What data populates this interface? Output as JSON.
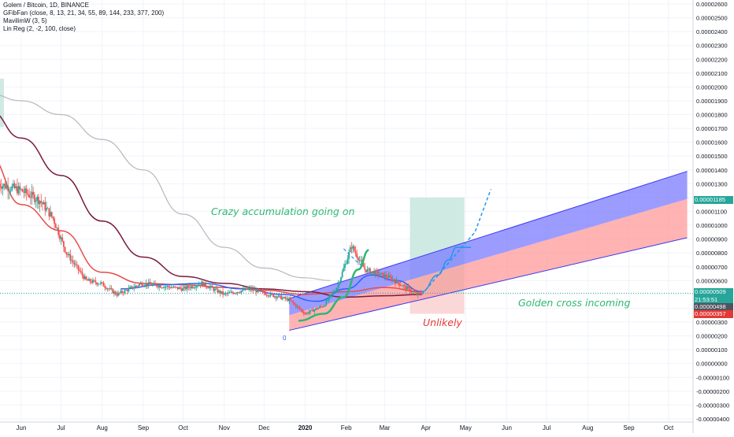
{
  "legend": {
    "symbol": "Golem / Bitcoin, 1D, BINANCE",
    "ind1": "GFibFan (close, 8, 13, 21, 34, 55, 89, 144, 233, 377, 200)",
    "ind2": "MavilimW (3, 5)",
    "ind3": "Lin Reg (2, -2, 100, close)"
  },
  "annotations": {
    "accumulation": "Crazy accumulation going on",
    "golden_cross": "Golden cross incoming",
    "unlikely": "Unlikely",
    "pivot": "0"
  },
  "price_tags": {
    "regression_top": "0.00001185",
    "last_price": "0.00000509",
    "countdown": "21:53:51",
    "ma_value": "0.00000498",
    "stop_level": "0.00000357"
  },
  "colors": {
    "up": "#26a69a",
    "down": "#ef5350",
    "channel_upper": "#7b7bff",
    "channel_lower": "#ff9a9a",
    "ma_red": "#e84a4a",
    "ma_maroon": "#7b1a3c",
    "ma_gray": "#b8b8b8",
    "ma_blue": "#2962ff",
    "arc_green": "#2eb872",
    "projection": "#2196f3",
    "target_box": "#cfe9e3",
    "loss_box": "#fbd8d8",
    "tag_green": "#26a69a",
    "tag_red": "#e53935",
    "tag_dark": "#50535e"
  },
  "chart_data": {
    "type": "candlestick",
    "title": "Golem / Bitcoin, 1D, BINANCE",
    "y_axis": {
      "ticks": [
        "0.00002600",
        "0.00002500",
        "0.00002400",
        "0.00002300",
        "0.00002200",
        "0.00002100",
        "0.00002000",
        "0.00001900",
        "0.00001800",
        "0.00001700",
        "0.00001600",
        "0.00001500",
        "0.00001400",
        "0.00001300",
        "0.00001200",
        "0.00001100",
        "0.00001000",
        "0.00000900",
        "0.00000800",
        "0.00000700",
        "0.00000600",
        "0.00000500",
        "0.00000400",
        "0.00000300",
        "0.00000200",
        "0.00000100",
        "0.00000000",
        "-0.00000100",
        "-0.00000200",
        "-0.00000300",
        "-0.00000400"
      ],
      "range": [
        -4e-06,
        2.6e-05
      ]
    },
    "x_axis": {
      "ticks": [
        "Jun",
        "Jul",
        "Aug",
        "Sep",
        "Oct",
        "Nov",
        "Dec",
        "2020",
        "Feb",
        "Mar",
        "Apr",
        "May",
        "Jun",
        "Jul",
        "Aug",
        "Sep",
        "Oct"
      ]
    },
    "price_path": [
      [
        "2019-05-15",
        1.3e-05
      ],
      [
        "2019-06-01",
        1.25e-05
      ],
      [
        "2019-06-15",
        1.18e-05
      ],
      [
        "2019-06-25",
        1.05e-05
      ],
      [
        "2019-07-05",
        8e-06
      ],
      [
        "2019-07-20",
        6e-06
      ],
      [
        "2019-07-31",
        5.8e-06
      ],
      [
        "2019-08-12",
        5e-06
      ],
      [
        "2019-08-31",
        5.8e-06
      ],
      [
        "2019-09-15",
        5.6e-06
      ],
      [
        "2019-10-01",
        5.4e-06
      ],
      [
        "2019-10-15",
        5.8e-06
      ],
      [
        "2019-11-01",
        5e-06
      ],
      [
        "2019-11-20",
        5.4e-06
      ],
      [
        "2019-12-05",
        5e-06
      ],
      [
        "2019-12-20",
        4.6e-06
      ],
      [
        "2020-01-01",
        3.6e-06
      ],
      [
        "2020-01-15",
        4.2e-06
      ],
      [
        "2020-01-25",
        5.5e-06
      ],
      [
        "2020-02-05",
        8.5e-06
      ],
      [
        "2020-02-15",
        6.8e-06
      ],
      [
        "2020-02-25",
        6.5e-06
      ],
      [
        "2020-03-05",
        6.2e-06
      ],
      [
        "2020-03-15",
        5.6e-06
      ],
      [
        "2020-03-25",
        5e-06
      ],
      [
        "2020-03-29",
        5.1e-06
      ]
    ],
    "regression_channel": {
      "start": "2019-12-20",
      "end": "2020-10-15",
      "upper": [
        4.7e-06,
        1.39e-05
      ],
      "middle": [
        3.5e-06,
        1.19e-05
      ],
      "lower": [
        2.4e-06,
        9.1e-06
      ]
    },
    "moving_averages": [
      {
        "color": "#e84a4a",
        "points": [
          [
            "2019-05-08",
            1.5e-05
          ],
          [
            "2019-06-01",
            1.15e-05
          ],
          [
            "2019-07-01",
            9.6e-06
          ],
          [
            "2019-08-01",
            6.6e-06
          ],
          [
            "2019-09-01",
            5.8e-06
          ],
          [
            "2019-10-01",
            5.7e-06
          ],
          [
            "2019-11-01",
            5.5e-06
          ],
          [
            "2019-12-01",
            5.3e-06
          ],
          [
            "2020-01-01",
            5e-06
          ],
          [
            "2020-02-01",
            5.2e-06
          ],
          [
            "2020-03-01",
            5.5e-06
          ],
          [
            "2020-03-29",
            5.2e-06
          ]
        ]
      },
      {
        "color": "#7b1a3c",
        "points": [
          [
            "2019-05-08",
            1.83e-05
          ],
          [
            "2019-06-01",
            1.63e-05
          ],
          [
            "2019-07-01",
            1.36e-05
          ],
          [
            "2019-08-01",
            1.03e-05
          ],
          [
            "2019-09-01",
            7.7e-06
          ],
          [
            "2019-10-01",
            6.3e-06
          ],
          [
            "2019-11-01",
            5.8e-06
          ],
          [
            "2019-12-01",
            5.4e-06
          ],
          [
            "2020-01-01",
            5.2e-06
          ],
          [
            "2020-02-01",
            4.8e-06
          ],
          [
            "2020-03-01",
            4.9e-06
          ],
          [
            "2020-03-29",
            5e-06
          ]
        ]
      },
      {
        "color": "#b8b8b8",
        "points": [
          [
            "2019-05-08",
            1.95e-05
          ],
          [
            "2019-06-01",
            1.9e-05
          ],
          [
            "2019-07-01",
            1.8e-05
          ],
          [
            "2019-08-01",
            1.62e-05
          ],
          [
            "2019-09-01",
            1.4e-05
          ],
          [
            "2019-10-01",
            1.08e-05
          ],
          [
            "2019-11-01",
            8.4e-06
          ],
          [
            "2019-12-01",
            6.9e-06
          ],
          [
            "2020-01-01",
            6.2e-06
          ],
          [
            "2020-01-20",
            6e-06
          ]
        ]
      },
      {
        "color": "#2962ff",
        "points": [
          [
            "2019-08-15",
            5.4e-06
          ],
          [
            "2019-09-15",
            5.7e-06
          ],
          [
            "2019-10-15",
            5.8e-06
          ],
          [
            "2019-11-15",
            5.4e-06
          ],
          [
            "2019-12-15",
            5e-06
          ],
          [
            "2020-01-10",
            4.5e-06
          ],
          [
            "2020-02-01",
            5.4e-06
          ],
          [
            "2020-02-20",
            6.4e-06
          ],
          [
            "2020-03-10",
            6e-06
          ],
          [
            "2020-03-29",
            5.2e-06
          ]
        ]
      }
    ],
    "accumulation_arc": [
      [
        "2019-12-27",
        3.1e-06
      ],
      [
        "2020-01-15",
        3.6e-06
      ],
      [
        "2020-01-30",
        4.8e-06
      ],
      [
        "2020-02-10",
        6.8e-06
      ],
      [
        "2020-02-18",
        8.2e-06
      ]
    ],
    "projection_path": [
      [
        "2020-03-29",
        5.2e-06
      ],
      [
        "2020-04-10",
        6.4e-06
      ],
      [
        "2020-04-18",
        7.5e-06
      ],
      [
        "2020-04-24",
        8.4e-06
      ],
      [
        "2020-05-05",
        8.4e-06
      ]
    ],
    "breakout_dashed": [
      [
        "2020-03-29",
        5e-06
      ],
      [
        "2020-04-20",
        7.5e-06
      ],
      [
        "2020-05-08",
        9.5e-06
      ],
      [
        "2020-05-20",
        1.26e-05
      ]
    ],
    "target_box": {
      "x0": "2020-03-20",
      "x1": "2020-04-30",
      "y0": 5.1e-06,
      "y1": 1.2e-05
    },
    "loss_box": {
      "x0": "2020-03-20",
      "x1": "2020-04-30",
      "y0": 3.6e-06,
      "y1": 5.1e-06
    },
    "last_price": 5.09e-06
  }
}
